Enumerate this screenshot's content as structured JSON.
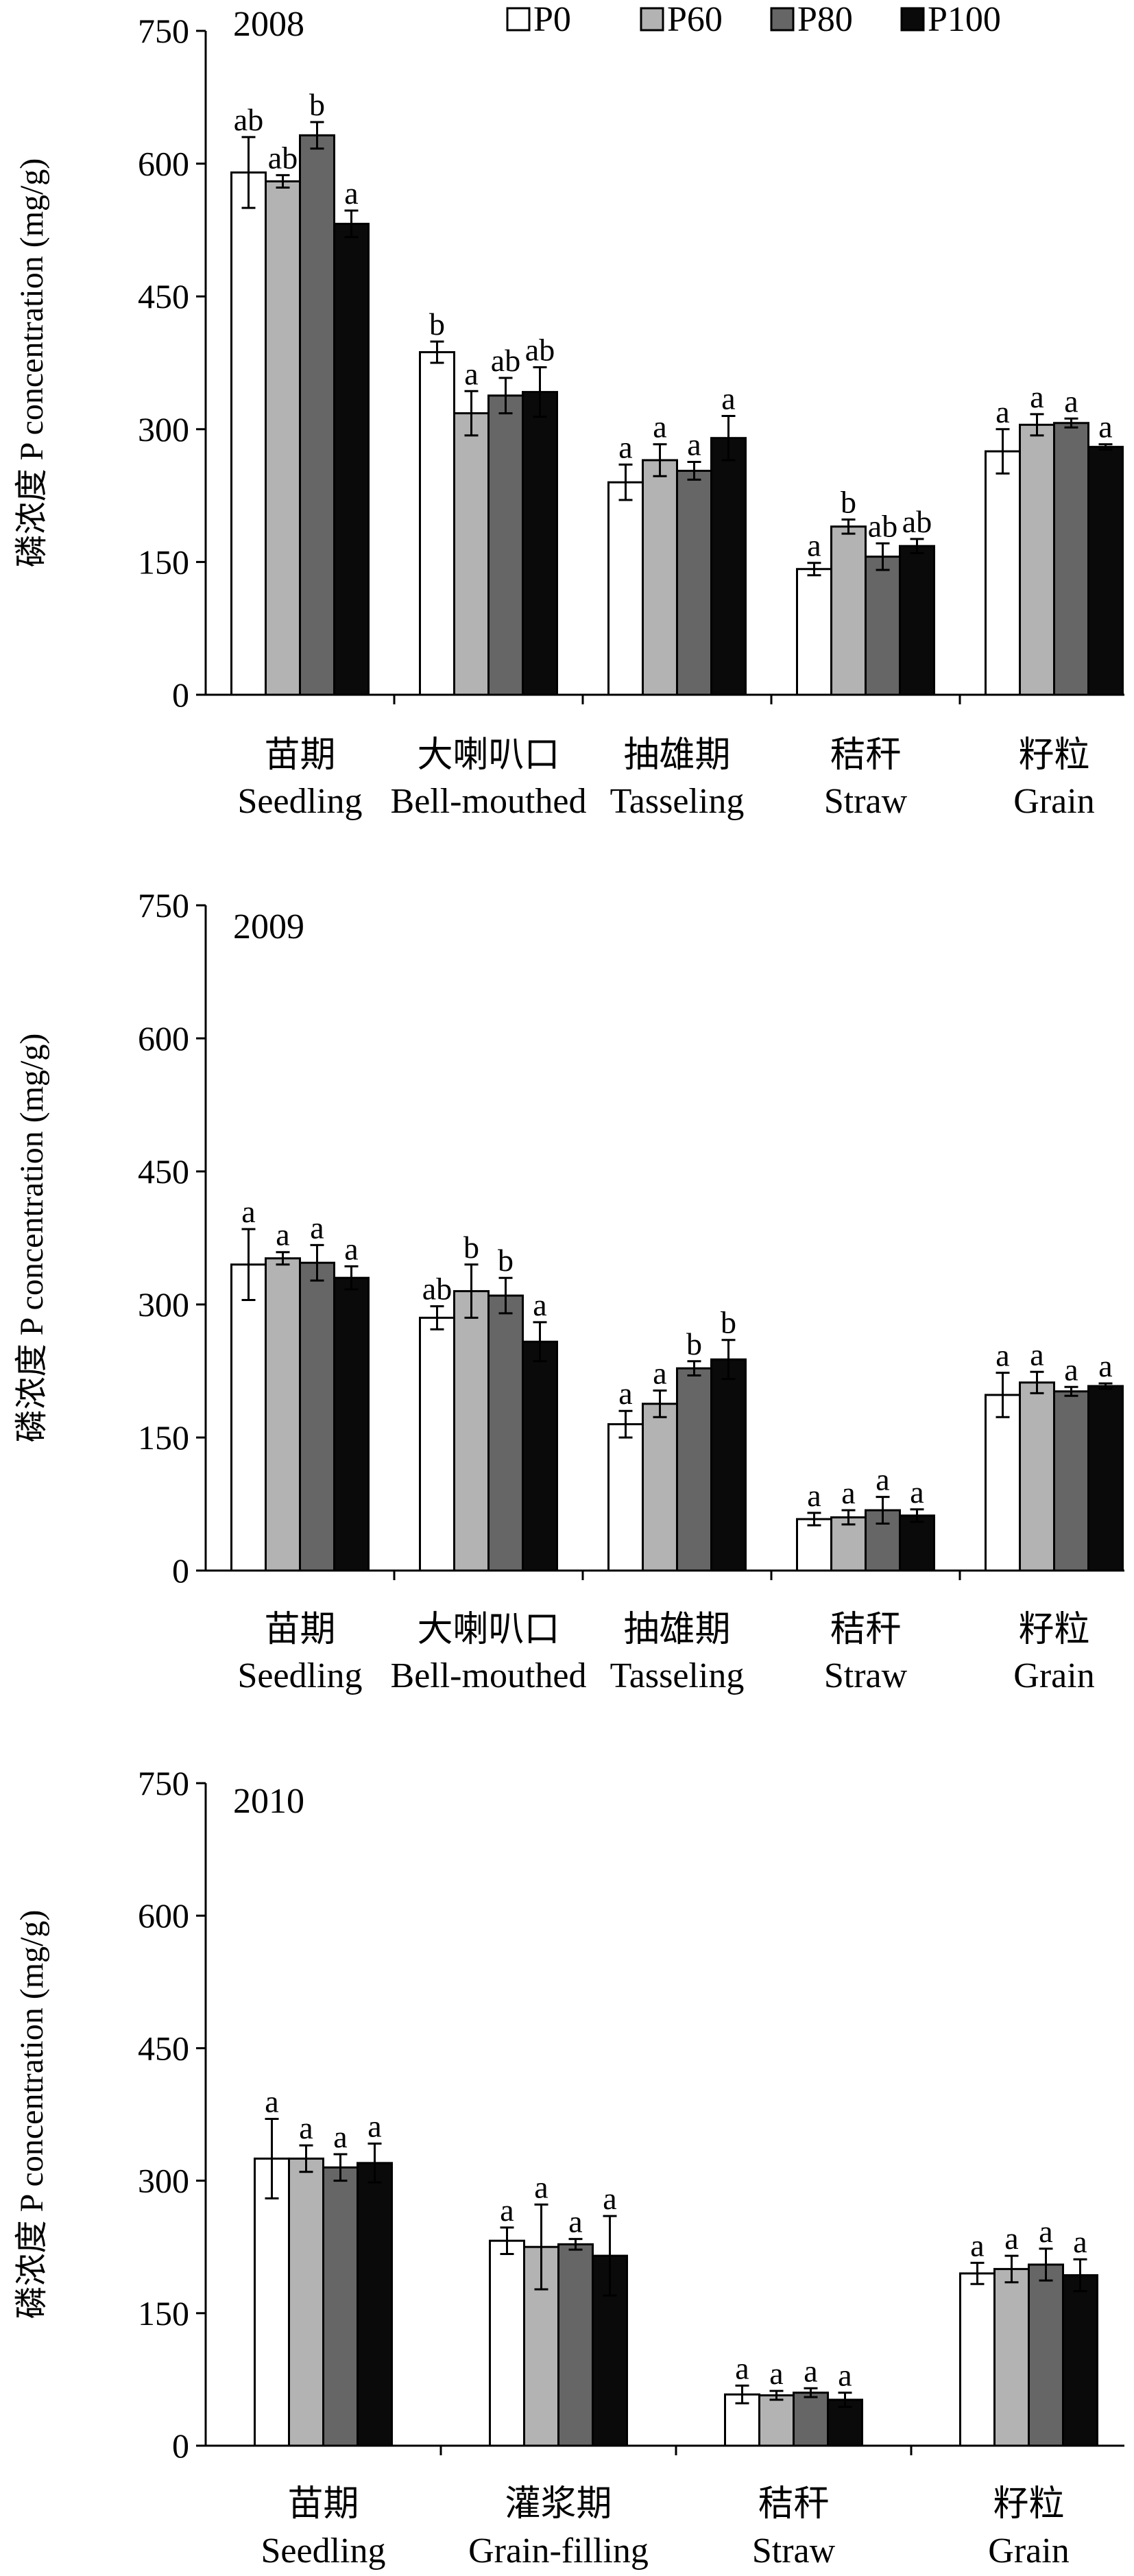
{
  "legend": [
    {
      "name": "P0",
      "color": "#ffffff"
    },
    {
      "name": "P60",
      "color": "#b3b3b3"
    },
    {
      "name": "P80",
      "color": "#666666"
    },
    {
      "name": "P100",
      "color": "#0a0a0a"
    }
  ],
  "chart_data": [
    {
      "type": "bar",
      "title": "2008",
      "ylabel": "磷浓度 P concentration (mg/g)",
      "ylim": [
        0,
        750
      ],
      "yticks": [
        0,
        150,
        300,
        450,
        600,
        750
      ],
      "categories": [
        {
          "cn": "苗期",
          "en": "Seedling"
        },
        {
          "cn": "大喇叭口",
          "en": "Bell-mouthed"
        },
        {
          "cn": "抽雄期",
          "en": "Tasseling"
        },
        {
          "cn": "秸秆",
          "en": "Straw"
        },
        {
          "cn": "籽粒",
          "en": "Grain"
        }
      ],
      "series": [
        {
          "name": "P0",
          "values": [
            590,
            387,
            240,
            142,
            275
          ],
          "errors": [
            40,
            12,
            20,
            7,
            25
          ],
          "letters": [
            "ab",
            "b",
            "a",
            "a",
            "a"
          ]
        },
        {
          "name": "P60",
          "values": [
            580,
            318,
            265,
            190,
            305
          ],
          "errors": [
            7,
            25,
            18,
            8,
            12
          ],
          "letters": [
            "ab",
            "a",
            "a",
            "b",
            "a"
          ]
        },
        {
          "name": "P80",
          "values": [
            632,
            338,
            253,
            156,
            307
          ],
          "errors": [
            15,
            20,
            10,
            15,
            5
          ],
          "letters": [
            "b",
            "ab",
            "a",
            "ab",
            "a"
          ]
        },
        {
          "name": "P100",
          "values": [
            532,
            342,
            290,
            168,
            280
          ],
          "errors": [
            15,
            28,
            25,
            8,
            3
          ],
          "letters": [
            "a",
            "ab",
            "a",
            "ab",
            "a"
          ]
        }
      ]
    },
    {
      "type": "bar",
      "title": "2009",
      "ylabel": "磷浓度 P concentration (mg/g)",
      "ylim": [
        0,
        750
      ],
      "yticks": [
        0,
        150,
        300,
        450,
        600,
        750
      ],
      "categories": [
        {
          "cn": "苗期",
          "en": "Seedling"
        },
        {
          "cn": "大喇叭口",
          "en": "Bell-mouthed"
        },
        {
          "cn": "抽雄期",
          "en": "Tasseling"
        },
        {
          "cn": "秸秆",
          "en": "Straw"
        },
        {
          "cn": "籽粒",
          "en": "Grain"
        }
      ],
      "series": [
        {
          "name": "P0",
          "values": [
            345,
            285,
            165,
            58,
            198
          ],
          "errors": [
            40,
            13,
            15,
            7,
            25
          ],
          "letters": [
            "a",
            "ab",
            "a",
            "a",
            "a"
          ]
        },
        {
          "name": "P60",
          "values": [
            352,
            315,
            188,
            60,
            212
          ],
          "errors": [
            7,
            30,
            15,
            8,
            12
          ],
          "letters": [
            "a",
            "b",
            "a",
            "a",
            "a"
          ]
        },
        {
          "name": "P80",
          "values": [
            347,
            310,
            228,
            68,
            202
          ],
          "errors": [
            20,
            20,
            8,
            15,
            5
          ],
          "letters": [
            "a",
            "b",
            "b",
            "a",
            "a"
          ]
        },
        {
          "name": "P100",
          "values": [
            330,
            258,
            238,
            62,
            208
          ],
          "errors": [
            13,
            22,
            22,
            7,
            3
          ],
          "letters": [
            "a",
            "a",
            "b",
            "a",
            "a"
          ]
        }
      ]
    },
    {
      "type": "bar",
      "title": "2010",
      "ylabel": "磷浓度 P concentration (mg/g)",
      "ylim": [
        0,
        750
      ],
      "yticks": [
        0,
        150,
        300,
        450,
        600,
        750
      ],
      "categories": [
        {
          "cn": "苗期",
          "en": "Seedling"
        },
        {
          "cn": "灌浆期",
          "en": "Grain-filling"
        },
        {
          "cn": "秸秆",
          "en": "Straw"
        },
        {
          "cn": "籽粒",
          "en": "Grain"
        }
      ],
      "series": [
        {
          "name": "P0",
          "values": [
            325,
            232,
            58,
            195
          ],
          "errors": [
            45,
            15,
            10,
            12
          ],
          "letters": [
            "a",
            "a",
            "a",
            "a"
          ]
        },
        {
          "name": "P60",
          "values": [
            325,
            225,
            57,
            200
          ],
          "errors": [
            15,
            48,
            5,
            15
          ],
          "letters": [
            "a",
            "a",
            "a",
            "a"
          ]
        },
        {
          "name": "P80",
          "values": [
            315,
            228,
            60,
            205
          ],
          "errors": [
            15,
            6,
            5,
            18
          ],
          "letters": [
            "a",
            "a",
            "a",
            "a"
          ]
        },
        {
          "name": "P100",
          "values": [
            320,
            215,
            52,
            193
          ],
          "errors": [
            22,
            45,
            8,
            18
          ],
          "letters": [
            "a",
            "a",
            "a",
            "a"
          ]
        }
      ]
    }
  ]
}
